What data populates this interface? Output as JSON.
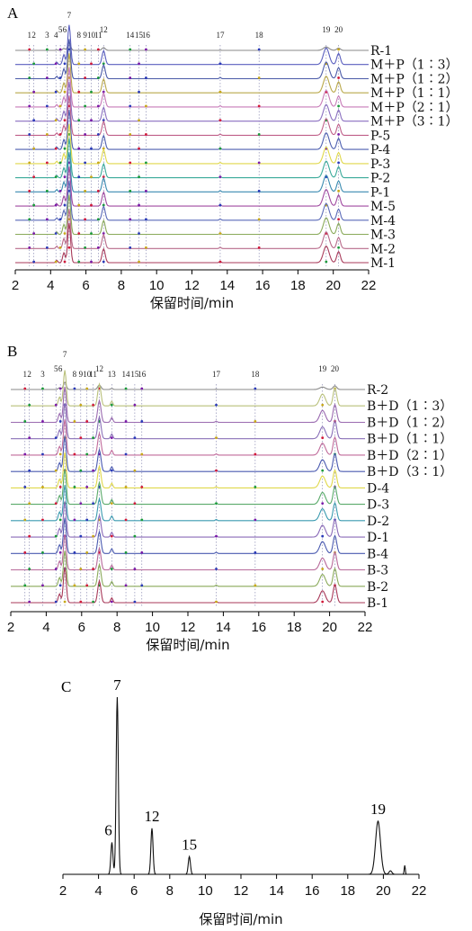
{
  "chart_data": [
    {
      "panel": "A",
      "type": "line",
      "xlabel": "保留时间/min",
      "xlim": [
        2,
        22
      ],
      "xticks": [
        2,
        4,
        6,
        8,
        10,
        12,
        14,
        16,
        18,
        20,
        22
      ],
      "peak_labels": [
        {
          "label": "1",
          "x": 2.8
        },
        {
          "label": "2",
          "x": 3.05
        },
        {
          "label": "3",
          "x": 3.8
        },
        {
          "label": "4",
          "x": 4.3
        },
        {
          "label": "5",
          "x": 4.55
        },
        {
          "label": "6",
          "x": 4.8
        },
        {
          "label": "7",
          "x": 5.05
        },
        {
          "label": "8",
          "x": 5.6
        },
        {
          "label": "9",
          "x": 5.95
        },
        {
          "label": "10",
          "x": 6.3
        },
        {
          "label": "11",
          "x": 6.7
        },
        {
          "label": "12",
          "x": 7.0
        },
        {
          "label": "14",
          "x": 8.5
        },
        {
          "label": "15",
          "x": 9.0
        },
        {
          "label": "16",
          "x": 9.4
        },
        {
          "label": "17",
          "x": 13.6
        },
        {
          "label": "18",
          "x": 15.8
        },
        {
          "label": "19",
          "x": 19.6
        },
        {
          "label": "20",
          "x": 20.3
        }
      ],
      "series": [
        {
          "name": "R-1",
          "color": "#8a8a8a"
        },
        {
          "name": "M＋P（1∶3）",
          "color": "#5a5fbf"
        },
        {
          "name": "M＋P（1∶2）",
          "color": "#4a5aa8"
        },
        {
          "name": "M＋P（1∶1）",
          "color": "#b9a84a"
        },
        {
          "name": "M＋P（2∶1）",
          "color": "#c77bb8"
        },
        {
          "name": "M＋P（3∶1）",
          "color": "#8a6fc0"
        },
        {
          "name": "P-5",
          "color": "#c0608a"
        },
        {
          "name": "P-4",
          "color": "#4d5fb0"
        },
        {
          "name": "P-3",
          "color": "#e0d84a"
        },
        {
          "name": "P-2",
          "color": "#3aaa9a"
        },
        {
          "name": "P-1",
          "color": "#3a8ab0"
        },
        {
          "name": "M-5",
          "color": "#a04aa0"
        },
        {
          "name": "M-4",
          "color": "#5a6ab8"
        },
        {
          "name": "M-3",
          "color": "#8aaa5a"
        },
        {
          "name": "M-2",
          "color": "#b86a8a"
        },
        {
          "name": "M-1",
          "color": "#a83a5a"
        }
      ]
    },
    {
      "panel": "B",
      "type": "line",
      "xlabel": "保留时间/min",
      "xlim": [
        2,
        22
      ],
      "xticks": [
        2,
        4,
        6,
        8,
        10,
        12,
        14,
        16,
        18,
        20,
        22
      ],
      "peak_labels": [
        {
          "label": "1",
          "x": 2.8
        },
        {
          "label": "2",
          "x": 3.05
        },
        {
          "label": "3",
          "x": 3.8
        },
        {
          "label": "5",
          "x": 4.55
        },
        {
          "label": "6",
          "x": 4.8
        },
        {
          "label": "7",
          "x": 5.05
        },
        {
          "label": "8",
          "x": 5.6
        },
        {
          "label": "9",
          "x": 5.95
        },
        {
          "label": "10",
          "x": 6.3
        },
        {
          "label": "11",
          "x": 6.65
        },
        {
          "label": "12",
          "x": 7.0
        },
        {
          "label": "13",
          "x": 7.7
        },
        {
          "label": "14",
          "x": 8.5
        },
        {
          "label": "15",
          "x": 9.0
        },
        {
          "label": "16",
          "x": 9.4
        },
        {
          "label": "17",
          "x": 13.6
        },
        {
          "label": "18",
          "x": 15.8
        },
        {
          "label": "19",
          "x": 19.6
        },
        {
          "label": "20",
          "x": 20.3
        }
      ],
      "series": [
        {
          "name": "R-2",
          "color": "#8a8a8a"
        },
        {
          "name": "B＋D（1∶3）",
          "color": "#b9c07a"
        },
        {
          "name": "B＋D（1∶2）",
          "color": "#9a6ab0"
        },
        {
          "name": "B＋D（1∶1）",
          "color": "#8a70b8"
        },
        {
          "name": "B＋D（2∶1）",
          "color": "#c06a9a"
        },
        {
          "name": "B＋D（3∶1）",
          "color": "#4a5ab0"
        },
        {
          "name": "D-4",
          "color": "#e0d84a"
        },
        {
          "name": "D-3",
          "color": "#5aaa6a"
        },
        {
          "name": "D-2",
          "color": "#3a9ab0"
        },
        {
          "name": "D-1",
          "color": "#8a6ab8"
        },
        {
          "name": "B-4",
          "color": "#4a5ab0"
        },
        {
          "name": "B-3",
          "color": "#b86a9a"
        },
        {
          "name": "B-2",
          "color": "#8aaa5a"
        },
        {
          "name": "B-1",
          "color": "#a83a5a"
        }
      ]
    },
    {
      "panel": "C",
      "type": "line",
      "xlabel": "保留时间/min",
      "xlim": [
        2,
        22
      ],
      "xticks": [
        2,
        4,
        6,
        8,
        10,
        12,
        14,
        16,
        18,
        20,
        22
      ],
      "peaks": [
        {
          "label": "6",
          "x": 4.75,
          "height": 0.18
        },
        {
          "label": "7",
          "x": 5.05,
          "height": 1.0
        },
        {
          "label": "12",
          "x": 7.0,
          "height": 0.26
        },
        {
          "label": "15",
          "x": 9.1,
          "height": 0.1
        },
        {
          "label": "19",
          "x": 19.7,
          "height": 0.3
        }
      ]
    }
  ]
}
